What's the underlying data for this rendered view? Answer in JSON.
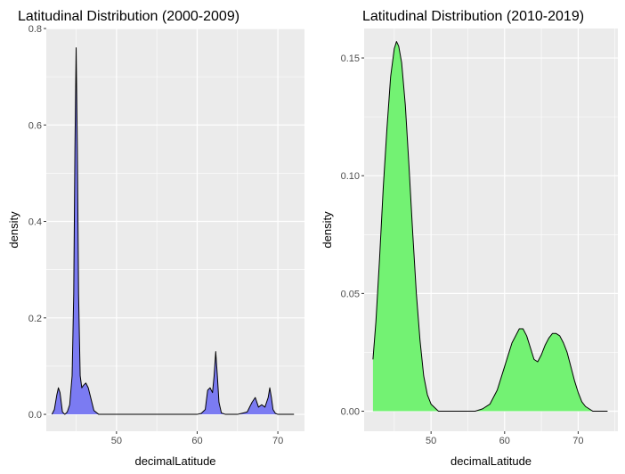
{
  "chart_data": [
    {
      "type": "area",
      "title": "Latitudinal Distribution (2000-2009)",
      "xlabel": "decimalLatitude",
      "ylabel": "density",
      "xlim": [
        41.3,
        73.3
      ],
      "ylim": [
        -0.035,
        0.8
      ],
      "xticks": [
        50,
        60,
        70
      ],
      "yticks": [
        0.0,
        0.2,
        0.4,
        0.6,
        0.8
      ],
      "ytick_labels": [
        "0.0",
        "0.2",
        "0.4",
        "0.6",
        "0.8"
      ],
      "fill_color": "#7b7bf2",
      "line_color": "#000000",
      "grid": true,
      "background": "#ebebeb",
      "series": [
        {
          "x": [
            42.0,
            42.3,
            42.6,
            42.8,
            43.0,
            43.3,
            43.6,
            43.9,
            44.2,
            44.5,
            44.7,
            44.85,
            45.0,
            45.15,
            45.3,
            45.5,
            45.7,
            45.9,
            46.2,
            46.5,
            46.8,
            47.2,
            47.8,
            50,
            55,
            60,
            60.5,
            61.0,
            61.3,
            61.6,
            61.9,
            62.1,
            62.3,
            62.5,
            62.7,
            63.0,
            63.5,
            64,
            65,
            65.5,
            66.2,
            66.8,
            67.2,
            67.6,
            68.0,
            68.4,
            68.8,
            69.0,
            69.2,
            69.4,
            69.7,
            70.0,
            71,
            72.0
          ],
          "y": [
            0.0,
            0.01,
            0.04,
            0.055,
            0.045,
            0.005,
            0.0,
            0.005,
            0.02,
            0.08,
            0.25,
            0.55,
            0.76,
            0.55,
            0.25,
            0.08,
            0.055,
            0.06,
            0.065,
            0.055,
            0.035,
            0.008,
            0.0,
            0.0,
            0.0,
            0.0,
            0.002,
            0.01,
            0.05,
            0.055,
            0.045,
            0.08,
            0.13,
            0.08,
            0.025,
            0.003,
            0.0,
            0.0,
            0.0,
            0.002,
            0.005,
            0.025,
            0.035,
            0.015,
            0.02,
            0.015,
            0.035,
            0.055,
            0.035,
            0.01,
            0.002,
            0.0,
            0.0,
            0.0
          ]
        }
      ]
    },
    {
      "type": "area",
      "title": "Latitudinal Distribution (2010-2019)",
      "xlabel": "decimalLatitude",
      "ylabel": "density",
      "xlim": [
        40.9,
        75.4
      ],
      "ylim": [
        -0.0085,
        0.1625
      ],
      "xticks": [
        50,
        60,
        70
      ],
      "yticks": [
        0.0,
        0.05,
        0.1,
        0.15
      ],
      "ytick_labels": [
        "0.00",
        "0.05",
        "0.10",
        "0.15"
      ],
      "fill_color": "#73f273",
      "line_color": "#000000",
      "grid": true,
      "background": "#ebebeb",
      "series": [
        {
          "x": [
            42.1,
            42.5,
            43.0,
            43.5,
            44.0,
            44.5,
            45.0,
            45.3,
            45.6,
            46.0,
            46.5,
            47.0,
            47.5,
            48.0,
            48.5,
            49.0,
            49.5,
            50.0,
            51.0,
            52.0,
            54.0,
            56.0,
            57.0,
            58.0,
            59.0,
            60.0,
            61.0,
            62.0,
            62.5,
            63.0,
            63.5,
            64.0,
            64.5,
            65.0,
            65.5,
            66.0,
            66.5,
            67.0,
            67.5,
            68.0,
            68.5,
            69.0,
            69.5,
            70.0,
            70.5,
            71.0,
            71.5,
            72.0,
            73.0,
            74.0
          ],
          "y": [
            0.022,
            0.038,
            0.065,
            0.095,
            0.12,
            0.142,
            0.154,
            0.157,
            0.155,
            0.148,
            0.13,
            0.104,
            0.076,
            0.05,
            0.03,
            0.015,
            0.007,
            0.003,
            0.0,
            0.0,
            0.0,
            0.0,
            0.001,
            0.003,
            0.009,
            0.019,
            0.029,
            0.035,
            0.035,
            0.032,
            0.027,
            0.022,
            0.021,
            0.024,
            0.028,
            0.031,
            0.033,
            0.033,
            0.032,
            0.029,
            0.025,
            0.019,
            0.013,
            0.008,
            0.004,
            0.002,
            0.001,
            0.0,
            0.0,
            0.0
          ]
        }
      ]
    }
  ]
}
